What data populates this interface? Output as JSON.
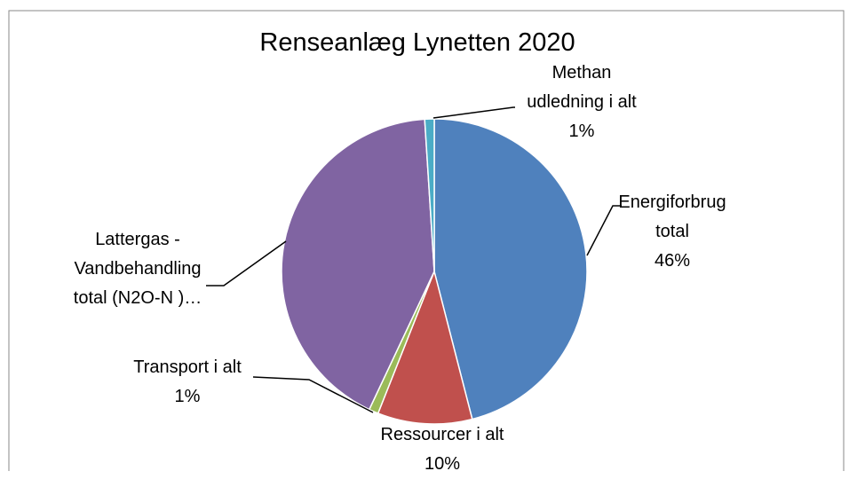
{
  "chart_data": {
    "type": "pie",
    "title": "Renseanlæg Lynetten 2020",
    "categories": [
      "Energiforbrug total",
      "Ressourcer i alt",
      "Transport i alt",
      "Lattergas - Vandbehandling total (N2O-N )…",
      "Methan udledning i alt"
    ],
    "values": [
      46,
      10,
      1,
      42,
      1
    ],
    "value_labels": [
      "46%",
      "10%",
      "1%",
      null,
      "1%"
    ],
    "colors": [
      "#4f81bd",
      "#c0504d",
      "#9bbb59",
      "#8064a2",
      "#4bacc6"
    ]
  }
}
